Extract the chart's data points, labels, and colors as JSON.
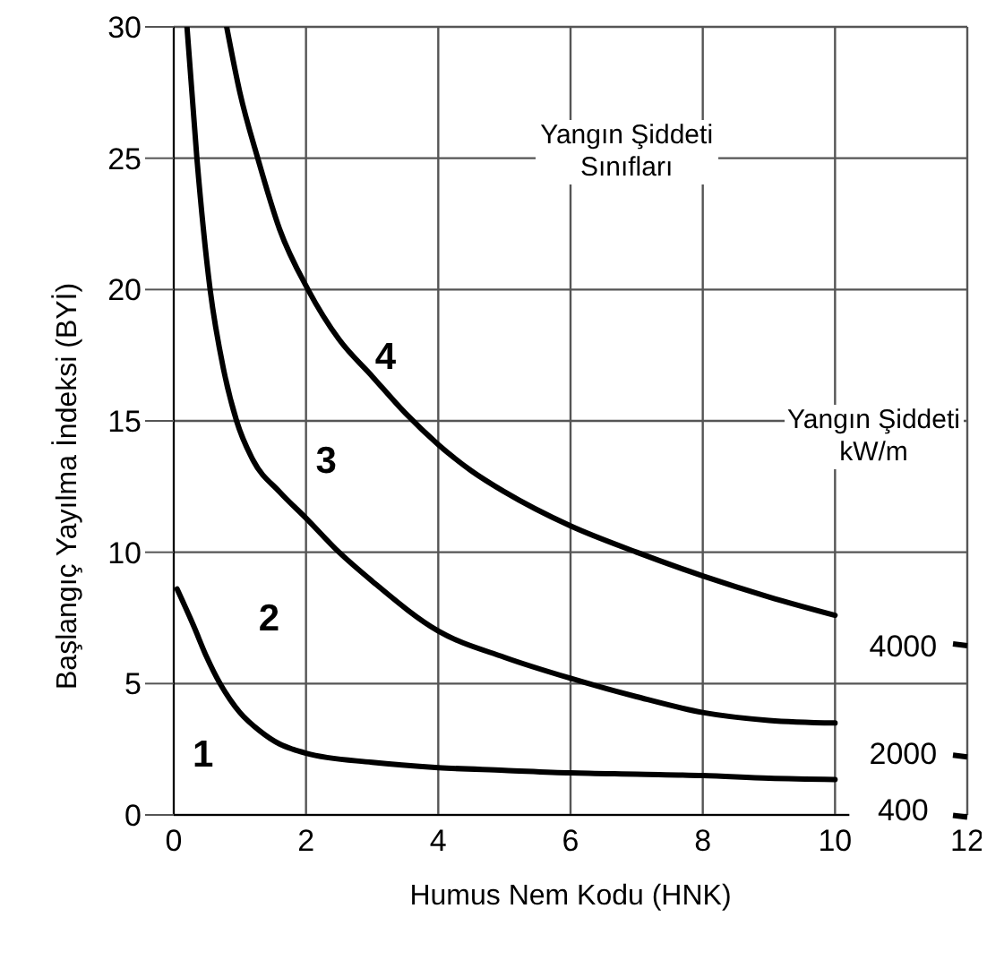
{
  "chart_data": {
    "type": "line",
    "xlabel": "Humus Nem Kodu (HNK)",
    "ylabel": "Başlangıç Yayılma İndeksi (BYİ)",
    "legend_title": "Yangın Şiddeti\nkW/m",
    "xlim": [
      0,
      12
    ],
    "xticks": [
      0,
      2,
      4,
      6,
      8,
      10,
      12
    ],
    "ylim": [
      0,
      30
    ],
    "yticks": [
      0,
      5,
      10,
      15,
      20,
      25,
      30
    ],
    "grid": true,
    "legend": "right",
    "marker": "none",
    "line_style": "solid",
    "series": [
      {
        "name": "4000",
        "color": "#000000",
        "x": [
          0.8,
          1.0,
          1.27,
          1.6,
          2.03,
          2.5,
          3.0,
          3.5,
          4.0,
          4.5,
          5,
          6,
          7,
          8,
          9,
          10
        ],
        "values": [
          30,
          27.5,
          25,
          22.3,
          20,
          18.1,
          16.7,
          15.3,
          14.1,
          13.1,
          12.3,
          11,
          10,
          9.1,
          8.3,
          7.6
        ]
      },
      {
        "name": "2000",
        "color": "#000000",
        "x": [
          0.2,
          0.35,
          0.55,
          0.75,
          0.95,
          1.2,
          1.6,
          2.0,
          2.5,
          3,
          4,
          5,
          6,
          7,
          8,
          9,
          10
        ],
        "values": [
          30,
          25,
          20,
          17,
          15,
          13.5,
          12.3,
          11.3,
          10.0,
          8.9,
          7.0,
          6.0,
          5.2,
          4.5,
          3.9,
          3.6,
          3.5
        ]
      },
      {
        "name": "400",
        "color": "#000000",
        "x": [
          0.05,
          0.3,
          0.5,
          0.7,
          0.85,
          1.0,
          1.3,
          1.6,
          1.8,
          2.0,
          3,
          4,
          5,
          6,
          7,
          8,
          9,
          10
        ],
        "values": [
          8.6,
          7.2,
          6.0,
          5.0,
          4.4,
          3.9,
          3.2,
          2.7,
          2.5,
          2.35,
          2.0,
          1.8,
          1.7,
          1.6,
          1.55,
          1.5,
          1.4,
          1.35
        ]
      }
    ],
    "annotations": [
      "1",
      "2",
      "3",
      "4",
      "Yangın Şiddeti\nSınıfları"
    ]
  }
}
